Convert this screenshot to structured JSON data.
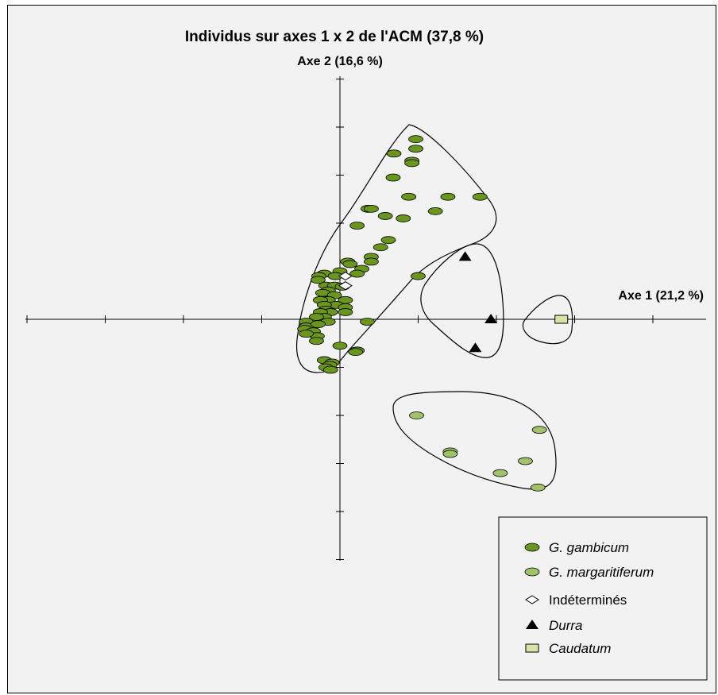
{
  "chart_data": {
    "type": "scatter",
    "title": "Individus sur axes 1 x 2 de l'ACM (37,8 %)",
    "xlabel": "Axe 1 (21,2 %)",
    "ylabel": "Axe 2 (16,6 %)",
    "xlim": [
      -4,
      4.7
    ],
    "ylim": [
      -5,
      5.1
    ],
    "grid": false,
    "legend_position": "bottom-right",
    "colors": {
      "gambicum": "#6a961f",
      "margaritiferum": "#9fc26a",
      "indetermines": "#ffffff",
      "durra": "#000000",
      "caudatum": "#d4e5a6"
    },
    "series": [
      {
        "name": "G. gambicum",
        "marker": "ellipse",
        "points": [
          [
            0.97,
            3.75
          ],
          [
            0.97,
            3.55
          ],
          [
            0.69,
            3.45
          ],
          [
            0.92,
            3.3
          ],
          [
            0.92,
            3.25
          ],
          [
            0.68,
            2.95
          ],
          [
            0.88,
            2.55
          ],
          [
            1.38,
            2.55
          ],
          [
            1.79,
            2.55
          ],
          [
            0.36,
            2.3
          ],
          [
            0.4,
            2.3
          ],
          [
            0.58,
            2.15
          ],
          [
            0.81,
            2.1
          ],
          [
            1.22,
            2.25
          ],
          [
            0.22,
            1.95
          ],
          [
            0.62,
            1.65
          ],
          [
            0.52,
            1.5
          ],
          [
            0.4,
            1.3
          ],
          [
            0.1,
            1.2
          ],
          [
            0.4,
            1.2
          ],
          [
            0.13,
            1.15
          ],
          [
            0.28,
            1.05
          ],
          [
            0.0,
            1.0
          ],
          [
            -0.2,
            0.95
          ],
          [
            0.22,
            0.95
          ],
          [
            -0.06,
            0.9
          ],
          [
            -0.27,
            0.9
          ],
          [
            1.0,
            0.9
          ],
          [
            -0.28,
            0.82
          ],
          [
            -0.18,
            0.7
          ],
          [
            -0.07,
            0.7
          ],
          [
            0.03,
            0.68
          ],
          [
            -0.15,
            0.6
          ],
          [
            -0.22,
            0.55
          ],
          [
            -0.07,
            0.5
          ],
          [
            0.07,
            0.4
          ],
          [
            -0.15,
            0.4
          ],
          [
            -0.25,
            0.4
          ],
          [
            -0.05,
            0.3
          ],
          [
            -0.2,
            0.3
          ],
          [
            0.07,
            0.25
          ],
          [
            -0.18,
            0.2
          ],
          [
            -0.12,
            0.15
          ],
          [
            -0.25,
            0.15
          ],
          [
            0.07,
            0.15
          ],
          [
            -0.2,
            0.05
          ],
          [
            -0.3,
            0.05
          ],
          [
            -0.15,
            -0.05
          ],
          [
            0.35,
            -0.05
          ],
          [
            -0.43,
            -0.05
          ],
          [
            -0.43,
            -0.15
          ],
          [
            -0.28,
            -0.1
          ],
          [
            -0.45,
            -0.2
          ],
          [
            -0.34,
            -0.25
          ],
          [
            -0.29,
            -0.35
          ],
          [
            -0.3,
            -0.45
          ],
          [
            -0.43,
            -0.3
          ],
          [
            0.0,
            -0.55
          ],
          [
            0.22,
            -0.65
          ],
          [
            0.2,
            -0.68
          ],
          [
            -0.2,
            -0.85
          ],
          [
            -0.1,
            -0.9
          ],
          [
            -0.13,
            -0.95
          ],
          [
            -0.18,
            -1.0
          ],
          [
            -0.12,
            -1.05
          ]
        ]
      },
      {
        "name": "G. margaritiferum",
        "marker": "ellipse",
        "points": [
          [
            0.98,
            -2.0
          ],
          [
            1.41,
            -2.75
          ],
          [
            1.41,
            -2.8
          ],
          [
            2.55,
            -2.3
          ],
          [
            2.37,
            -2.95
          ],
          [
            2.05,
            -3.2
          ],
          [
            2.53,
            -3.5
          ]
        ]
      },
      {
        "name": "Indéterminés",
        "marker": "diamond",
        "points": [
          [
            0.07,
            0.9
          ],
          [
            0.07,
            0.7
          ]
        ]
      },
      {
        "name": "Durra",
        "marker": "triangle",
        "points": [
          [
            1.6,
            1.3
          ],
          [
            1.93,
            0.0
          ],
          [
            1.73,
            -0.6
          ]
        ]
      },
      {
        "name": "Caudatum",
        "marker": "square",
        "points": [
          [
            2.83,
            0.0
          ]
        ]
      }
    ]
  }
}
